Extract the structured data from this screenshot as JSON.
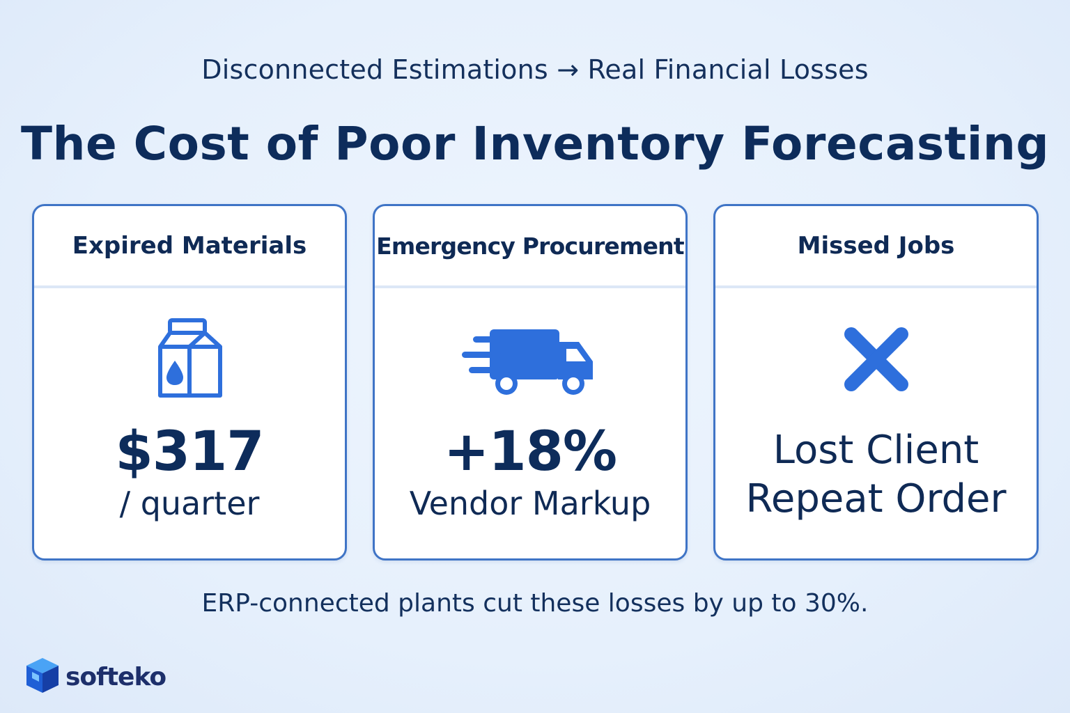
{
  "header": {
    "subtitle": "Disconnected Estimations → Real Financial Losses",
    "title": "The Cost of Poor Inventory Forecasting"
  },
  "cards": [
    {
      "heading": "Expired Materials",
      "icon": "milk-carton-icon",
      "value": "$317",
      "caption": "/ quarter"
    },
    {
      "heading": "Emergency Procurement",
      "icon": "delivery-truck-icon",
      "value": "+18%",
      "caption": "Vendor Markup"
    },
    {
      "heading": "Missed Jobs",
      "icon": "x-mark-icon",
      "line1": "Lost Client",
      "line2": "Repeat Order"
    }
  ],
  "footer": {
    "note": "ERP-connected plants cut these losses by up to 30%."
  },
  "brand": {
    "name": "softeko",
    "icon": "cube-logo-icon"
  },
  "colors": {
    "accent": "#2e6fdc",
    "text": "#0f2a55",
    "card_border": "#3f74c6",
    "background": "#e6f0fc"
  }
}
